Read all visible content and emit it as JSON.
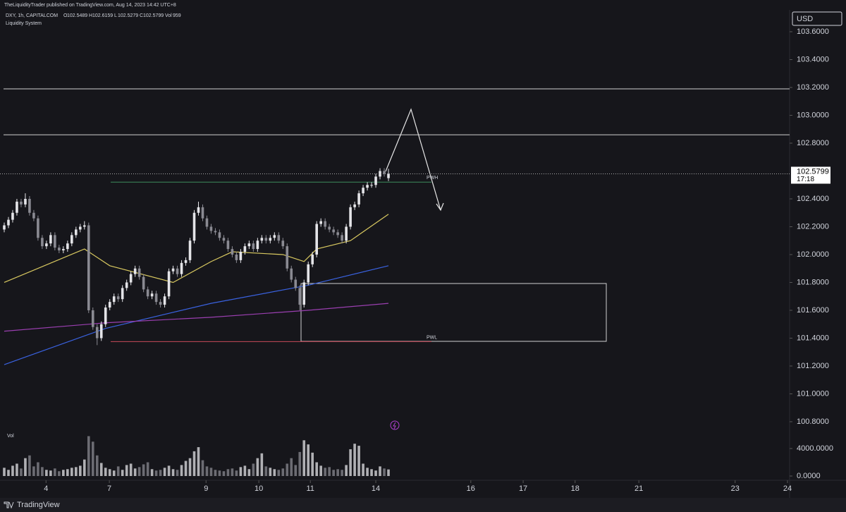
{
  "header": "TheLiquidityTrader published on TradingView.com, Aug 14, 2023 14:42 UTC+8",
  "footer": "TradingView",
  "chart_data": {
    "type": "candlestick",
    "symbol": "DXY, 1h, CAPITALCOM",
    "indicator": "Liquidity System",
    "legend_labels": [
      "O",
      "H",
      "L",
      "C",
      "Vol"
    ],
    "currency": "USD",
    "countdown": "17:18",
    "volume_label": "Vol",
    "up_color": "#e4e4e8",
    "down_color": "#8a8a92",
    "xlim": [
      -1,
      186
    ],
    "xticks": [
      {
        "value": 9.9,
        "label": "4"
      },
      {
        "value": 24.9,
        "label": "7"
      },
      {
        "value": 47.8,
        "label": "9"
      },
      {
        "value": 60.3,
        "label": "10"
      },
      {
        "value": 72.5,
        "label": "11"
      },
      {
        "value": 88,
        "label": "14"
      },
      {
        "value": 110.5,
        "label": "16"
      },
      {
        "value": 122.9,
        "label": "17"
      },
      {
        "value": 135.2,
        "label": "18"
      },
      {
        "value": 150.3,
        "label": "21"
      },
      {
        "value": 173.1,
        "label": "23"
      },
      {
        "value": 185.5,
        "label": "24"
      }
    ],
    "ylim": [
      100.75,
      103.7
    ],
    "yticks": [
      {
        "value": 103.6,
        "label": "103.6000"
      },
      {
        "value": 103.4,
        "label": "103.4000"
      },
      {
        "value": 103.2,
        "label": "103.2000"
      },
      {
        "value": 103.0,
        "label": "103.0000"
      },
      {
        "value": 102.8,
        "label": "102.8000"
      },
      {
        "value": 102.4,
        "label": "102.4000"
      },
      {
        "value": 102.2,
        "label": "102.2000"
      },
      {
        "value": 102.0,
        "label": "102.0000"
      },
      {
        "value": 101.8,
        "label": "101.8000"
      },
      {
        "value": 101.6,
        "label": "101.6000"
      },
      {
        "value": 101.4,
        "label": "101.4000"
      },
      {
        "value": 101.2,
        "label": "101.2000"
      },
      {
        "value": 101.0,
        "label": "101.0000"
      },
      {
        "value": 100.8,
        "label": "100.8000"
      }
    ],
    "vlim": [
      0,
      6000
    ],
    "vticks": [
      {
        "value": 4000,
        "label": "4000.0000"
      },
      {
        "value": 0,
        "label": "0.0000"
      }
    ],
    "open": [
      102.18,
      102.21,
      102.25,
      102.3,
      102.38,
      102.36,
      102.4,
      102.3,
      102.26,
      102.12,
      102.06,
      102.08,
      102.14,
      102.05,
      102.03,
      102.04,
      102.08,
      102.14,
      102.18,
      102.2,
      102.21,
      101.6,
      101.48,
      101.4,
      101.5,
      101.62,
      101.66,
      101.7,
      101.68,
      101.76,
      101.8,
      101.86,
      101.9,
      101.84,
      101.75,
      101.7,
      101.72,
      101.66,
      101.64,
      101.7,
      101.88,
      101.9,
      101.86,
      101.94,
      101.96,
      102.1,
      102.3,
      102.34,
      102.26,
      102.2,
      102.17,
      102.16,
      102.12,
      102.1,
      102.04,
      102.0,
      101.96,
      102.02,
      102.06,
      102.08,
      102.04,
      102.1,
      102.12,
      102.1,
      102.12,
      102.14,
      102.1,
      102.06,
      101.9,
      101.82,
      101.76,
      101.64,
      101.8,
      101.93,
      102.0,
      102.22,
      102.24,
      102.2,
      102.18,
      102.16,
      102.14,
      102.1,
      102.2,
      102.34,
      102.36,
      102.44,
      102.48,
      102.5,
      102.5,
      102.56,
      102.6,
      102.5489
    ],
    "high": [
      102.23,
      102.27,
      102.32,
      102.4,
      102.4,
      102.44,
      102.42,
      102.32,
      102.28,
      102.14,
      102.1,
      102.16,
      102.16,
      102.07,
      102.06,
      102.1,
      102.16,
      102.2,
      102.22,
      102.24,
      102.23,
      101.62,
      101.5,
      101.52,
      101.64,
      101.68,
      101.72,
      101.72,
      101.78,
      101.82,
      101.88,
      101.92,
      101.92,
      101.86,
      101.77,
      101.74,
      101.74,
      101.68,
      101.72,
      101.9,
      101.92,
      101.92,
      101.96,
      101.98,
      102.12,
      102.32,
      102.38,
      102.36,
      102.28,
      102.22,
      102.19,
      102.18,
      102.14,
      102.12,
      102.06,
      102.02,
      102.04,
      102.08,
      102.1,
      102.1,
      102.12,
      102.14,
      102.14,
      102.14,
      102.16,
      102.16,
      102.12,
      102.08,
      101.92,
      101.84,
      101.78,
      101.82,
      101.95,
      102.02,
      102.24,
      102.26,
      102.26,
      102.22,
      102.2,
      102.18,
      102.16,
      102.22,
      102.36,
      102.38,
      102.46,
      102.5,
      102.52,
      102.52,
      102.58,
      102.62,
      102.62,
      102.6159
    ],
    "low": [
      102.16,
      102.19,
      102.23,
      102.28,
      102.34,
      102.34,
      102.28,
      102.24,
      102.1,
      102.04,
      102.04,
      102.06,
      102.03,
      102.01,
      102.01,
      102.02,
      102.06,
      102.12,
      102.16,
      102.18,
      101.58,
      101.46,
      101.35,
      101.38,
      101.48,
      101.6,
      101.64,
      101.66,
      101.66,
      101.74,
      101.78,
      101.84,
      101.82,
      101.73,
      101.68,
      101.68,
      101.64,
      101.62,
      101.62,
      101.68,
      101.86,
      101.84,
      101.84,
      101.92,
      101.94,
      102.08,
      102.28,
      102.24,
      102.18,
      102.15,
      102.14,
      102.1,
      102.08,
      102.02,
      101.98,
      101.94,
      101.94,
      102.0,
      102.04,
      102.02,
      102.02,
      102.08,
      102.08,
      102.08,
      102.1,
      102.08,
      102.04,
      101.88,
      101.8,
      101.74,
      101.6,
      101.62,
      101.78,
      101.91,
      101.98,
      102.2,
      102.18,
      102.16,
      102.14,
      102.12,
      102.08,
      102.08,
      102.18,
      102.32,
      102.34,
      102.42,
      102.46,
      102.48,
      102.48,
      102.54,
      102.56,
      102.5279
    ],
    "close": [
      102.21,
      102.25,
      102.3,
      102.38,
      102.36,
      102.4,
      102.3,
      102.26,
      102.12,
      102.06,
      102.08,
      102.14,
      102.05,
      102.03,
      102.04,
      102.08,
      102.14,
      102.18,
      102.2,
      102.21,
      101.6,
      101.48,
      101.4,
      101.5,
      101.62,
      101.66,
      101.7,
      101.68,
      101.76,
      101.8,
      101.86,
      101.9,
      101.84,
      101.75,
      101.7,
      101.72,
      101.66,
      101.64,
      101.7,
      101.88,
      101.9,
      101.86,
      101.94,
      101.96,
      102.1,
      102.3,
      102.34,
      102.26,
      102.2,
      102.17,
      102.16,
      102.12,
      102.1,
      102.04,
      102.0,
      101.96,
      102.02,
      102.06,
      102.08,
      102.04,
      102.1,
      102.12,
      102.1,
      102.12,
      102.14,
      102.1,
      102.06,
      101.9,
      101.82,
      101.76,
      101.64,
      101.8,
      101.93,
      102.0,
      102.22,
      102.24,
      102.2,
      102.18,
      102.16,
      102.14,
      102.1,
      102.2,
      102.34,
      102.36,
      102.44,
      102.48,
      102.5,
      102.5,
      102.56,
      102.6,
      102.58,
      102.5799
    ],
    "volume": [
      1200,
      900,
      1500,
      1800,
      1100,
      2600,
      3000,
      1400,
      2000,
      1300,
      900,
      800,
      1100,
      700,
      900,
      1000,
      1200,
      1300,
      1500,
      2400,
      5800,
      5000,
      3000,
      1900,
      1200,
      1000,
      800,
      1400,
      900,
      1600,
      1800,
      1100,
      1300,
      1700,
      2000,
      1000,
      800,
      900,
      1200,
      1500,
      1000,
      900,
      1600,
      2200,
      2600,
      3600,
      4200,
      2300,
      1400,
      1200,
      900,
      800,
      700,
      1000,
      1100,
      800,
      1300,
      1500,
      1000,
      1800,
      2600,
      3300,
      1400,
      1200,
      1000,
      900,
      1100,
      1800,
      2600,
      1600,
      3500,
      5200,
      4600,
      3400,
      2000,
      1500,
      1200,
      1300,
      900,
      1000,
      900,
      1600,
      3900,
      4700,
      4400,
      1800,
      1200,
      1000,
      800,
      1400,
      1100,
      959
    ],
    "lines": [
      {
        "color": "#d8c860",
        "x": [
          0,
          19,
          25,
          40,
          49,
          54,
          66,
          71,
          74,
          82,
          91
        ],
        "values": [
          101.8,
          102.04,
          101.92,
          101.8,
          101.95,
          102.02,
          102.0,
          101.95,
          102.04,
          102.1,
          102.29
        ]
      },
      {
        "color": "#3a62e0",
        "x": [
          0,
          24,
          49,
          72,
          91
        ],
        "values": [
          101.21,
          101.47,
          101.65,
          101.78,
          101.92
        ]
      },
      {
        "color": "#9a3fb0",
        "x": [
          0,
          24,
          49,
          72,
          91
        ],
        "values": [
          101.45,
          101.51,
          101.55,
          101.6,
          101.65
        ]
      }
    ],
    "levels": [
      103.19,
      102.86
    ],
    "liquidity": [
      {
        "label": "PWH",
        "value": 102.52,
        "color": "#3c8c5c"
      },
      {
        "label": "PWL",
        "value": 101.375,
        "color": "#c84a5a"
      }
    ]
  }
}
